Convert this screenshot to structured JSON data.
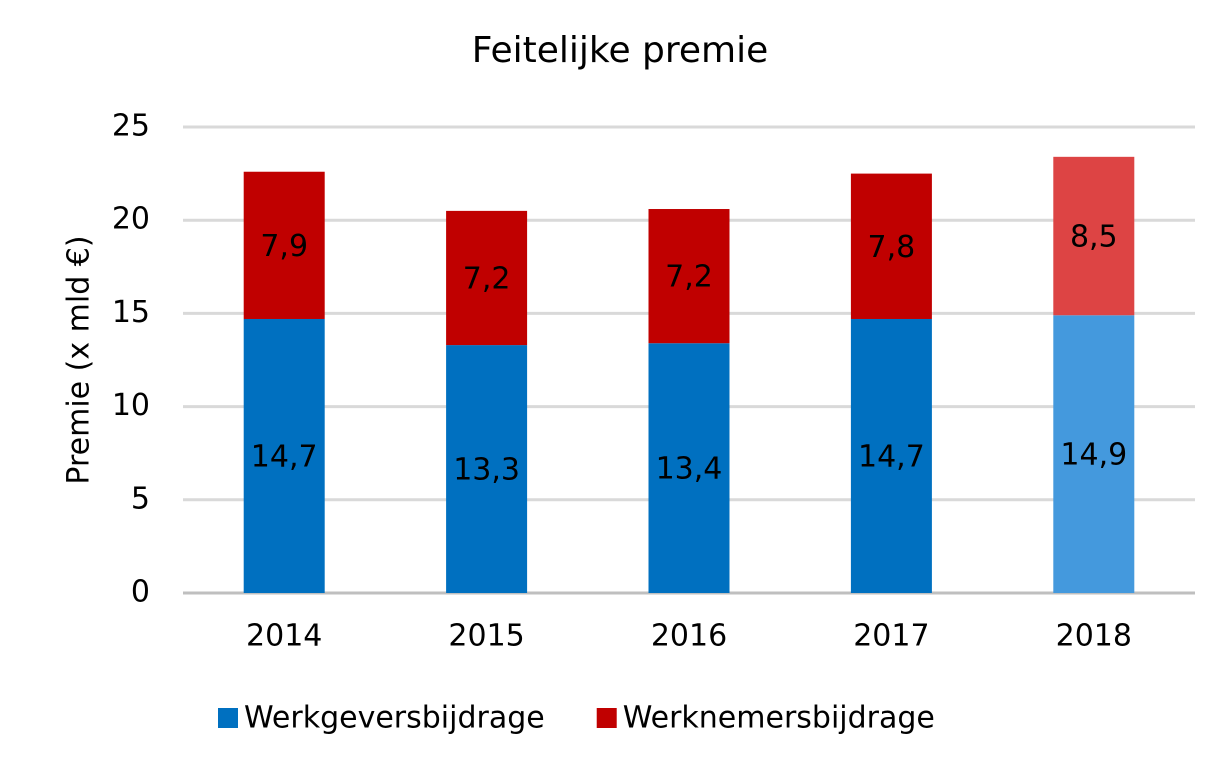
{
  "chart_data": {
    "type": "stacked_bar",
    "title": "Feitelijke premie",
    "y_label": "Premie (x mld €)",
    "categories": [
      "2014",
      "2015",
      "2016",
      "2017",
      "2018"
    ],
    "series": [
      {
        "name": "Werkgeversbijdrage",
        "color": "#0070c0",
        "point_colors": [
          "#0070c0",
          "#0070c0",
          "#0070c0",
          "#0070c0",
          "#4499dd"
        ],
        "values": [
          14.7,
          13.3,
          13.4,
          14.7,
          14.9
        ],
        "value_labels": [
          "14,7",
          "13,3",
          "13,4",
          "14,7",
          "14,9"
        ]
      },
      {
        "name": "Werknemersbijdrage",
        "color": "#c00000",
        "point_colors": [
          "#c00000",
          "#c00000",
          "#c00000",
          "#c00000",
          "#dd4444"
        ],
        "values": [
          7.9,
          7.2,
          7.2,
          7.8,
          8.5
        ],
        "value_labels": [
          "7,9",
          "7,2",
          "7,2",
          "7,8",
          "8,5"
        ]
      }
    ],
    "ylim": [
      0,
      25
    ],
    "yticks": [
      0,
      5,
      10,
      15,
      20,
      25
    ],
    "grid": true,
    "legend": "bottom"
  }
}
